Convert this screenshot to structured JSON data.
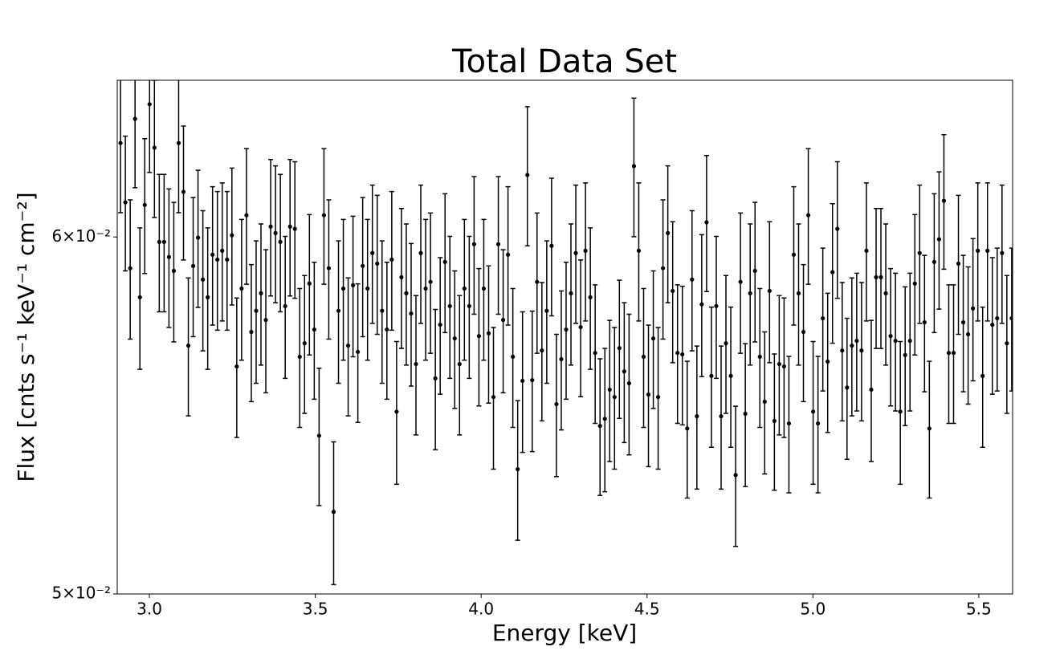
{
  "chart_data": {
    "type": "errorbar",
    "title": "Total Data Set",
    "x_label": "Energy [keV]",
    "y_label": "Flux [cnts s⁻¹ keV⁻¹ cm⁻²]",
    "color": "#000000",
    "ylog": true,
    "xlim": [
      2.903,
      5.602
    ],
    "ylim": [
      0.05,
      0.065
    ],
    "xticks": [
      {
        "value": 3,
        "label": "3.0"
      },
      3.5,
      {
        "value": 4,
        "label": "4.0"
      },
      4.5,
      {
        "value": 5,
        "label": "5.0"
      },
      5.5
    ],
    "yticks": [
      {
        "value": 0.05,
        "label": "5×10⁻²"
      },
      {
        "value": 0.06,
        "label": "6×10⁻²"
      }
    ],
    "x": [
      2.9129,
      2.9275,
      2.9421,
      2.9567,
      2.9713,
      2.9859,
      3.0005,
      3.0151,
      3.0297,
      3.0443,
      3.0589,
      3.0735,
      3.0881,
      3.1027,
      3.1173,
      3.1319,
      3.1465,
      3.1611,
      3.1757,
      3.1903,
      3.2049,
      3.2195,
      3.2341,
      3.2487,
      3.2633,
      3.2779,
      3.2925,
      3.3071,
      3.3217,
      3.3363,
      3.3509,
      3.3655,
      3.3801,
      3.3947,
      3.4093,
      3.4239,
      3.4385,
      3.4531,
      3.4677,
      3.4823,
      3.4969,
      3.5115,
      3.5261,
      3.5407,
      3.5553,
      3.5699,
      3.5845,
      3.5991,
      3.6137,
      3.6283,
      3.6429,
      3.6575,
      3.6721,
      3.6867,
      3.7013,
      3.7159,
      3.7305,
      3.7451,
      3.7597,
      3.7743,
      3.7889,
      3.8035,
      3.8181,
      3.8327,
      3.8473,
      3.8619,
      3.8765,
      3.8911,
      3.9057,
      3.9203,
      3.9349,
      3.9495,
      3.9641,
      3.9787,
      3.9933,
      4.0079,
      4.0225,
      4.0371,
      4.0517,
      4.0663,
      4.0809,
      4.0955,
      4.1101,
      4.1247,
      4.1393,
      4.1539,
      4.1685,
      4.1831,
      4.1977,
      4.2123,
      4.2269,
      4.2415,
      4.2561,
      4.2707,
      4.2853,
      4.2999,
      4.3145,
      4.3291,
      4.3437,
      4.3583,
      4.3729,
      4.3875,
      4.4021,
      4.4167,
      4.4313,
      4.4459,
      4.4605,
      4.4751,
      4.4897,
      4.5043,
      4.5189,
      4.5335,
      4.5481,
      4.5627,
      4.5773,
      4.5919,
      4.6065,
      4.6211,
      4.6357,
      4.6503,
      4.6649,
      4.6795,
      4.6941,
      4.7087,
      4.7233,
      4.7379,
      4.7525,
      4.7671,
      4.7817,
      4.7963,
      4.8109,
      4.8255,
      4.8401,
      4.8547,
      4.8693,
      4.8839,
      4.8985,
      4.9131,
      4.9277,
      4.9423,
      4.9569,
      4.9715,
      4.9861,
      5.0007,
      5.0153,
      5.0299,
      5.0445,
      5.0591,
      5.0737,
      5.0883,
      5.1029,
      5.1175,
      5.1321,
      5.1467,
      5.1613,
      5.1759,
      5.1905,
      5.2051,
      5.2197,
      5.2343,
      5.2489,
      5.2635,
      5.2781,
      5.2927,
      5.3073,
      5.3219,
      5.3365,
      5.3511,
      5.3657,
      5.3803,
      5.3949,
      5.4095,
      5.4241,
      5.4387,
      5.4533,
      5.4679,
      5.4825,
      5.4971,
      5.5117,
      5.5263,
      5.5409,
      5.5555,
      5.5701,
      5.5847,
      5.5993
    ],
    "values": [
      0.06295,
      0.06107,
      0.05905,
      0.06373,
      0.05818,
      0.06099,
      0.06421,
      0.0628,
      0.05985,
      0.05985,
      0.05939,
      0.05897,
      0.06295,
      0.0614,
      0.05676,
      0.05912,
      0.05998,
      0.05871,
      0.05818,
      0.05946,
      0.05931,
      0.05958,
      0.05931,
      0.06005,
      0.05616,
      0.05844,
      0.06067,
      0.05716,
      0.05778,
      0.0583,
      0.05751,
      0.06032,
      0.06012,
      0.05985,
      0.05792,
      0.06032,
      0.06025,
      0.05644,
      0.05683,
      0.05859,
      0.05723,
      0.05421,
      0.06067,
      0.05905,
      0.05214,
      0.05778,
      0.05844,
      0.05676,
      0.05854,
      0.05658,
      0.05912,
      0.05844,
      0.05951,
      0.05919,
      0.05778,
      0.05723,
      0.05931,
      0.05488,
      0.05878,
      0.0583,
      0.0577,
      0.05623,
      0.05951,
      0.05844,
      0.05864,
      0.05582,
      0.05737,
      0.05924,
      0.05792,
      0.05697,
      0.05623,
      0.05844,
      0.05792,
      0.05978,
      0.05704,
      0.05844,
      0.05712,
      0.05529,
      0.05978,
      0.05751,
      0.05946,
      0.05644,
      0.05329,
      0.05575,
      0.06193,
      0.05577,
      0.05864,
      0.05662,
      0.05778,
      0.05973,
      0.05509,
      0.05637,
      0.05723,
      0.0583,
      0.05951,
      0.0573,
      0.05958,
      0.05818,
      0.05655,
      0.05448,
      0.05468,
      0.0555,
      0.05529,
      0.05669,
      0.05602,
      0.05568,
      0.06221,
      0.05958,
      0.05644,
      0.05536,
      0.05697,
      0.05529,
      0.05905,
      0.06012,
      0.05837,
      0.05655,
      0.05651,
      0.05441,
      0.05871,
      0.05475,
      0.05797,
      0.06045,
      0.05589,
      0.05792,
      0.05475,
      0.05683,
      0.05589,
      0.05313,
      0.05864,
      0.05482,
      0.0583,
      0.05897,
      0.05644,
      0.05516,
      0.05837,
      0.05462,
      0.05623,
      0.05616,
      0.05455,
      0.05946,
      0.0583,
      0.05716,
      0.06067,
      0.05488,
      0.05455,
      0.05756,
      0.0563,
      0.05893,
      0.06025,
      0.05662,
      0.05556,
      0.05676,
      0.0569,
      0.05662,
      0.05958,
      0.0555,
      0.05878,
      0.05878,
      0.0583,
      0.05704,
      0.0569,
      0.05488,
      0.05649,
      0.0569,
      0.05859,
      0.05951,
      0.05744,
      0.05441,
      0.05924,
      0.05993,
      0.06112,
      0.05655,
      0.05655,
      0.05919,
      0.05744,
      0.05709,
      0.05785,
      0.05958,
      0.05589,
      0.05958,
      0.05737,
      0.05756,
      0.05951,
      0.05683,
      0.05756
    ],
    "errors": [
      0.0022,
      0.0021,
      0.0021,
      0.0022,
      0.0021,
      0.0021,
      0.0022,
      0.0022,
      0.0021,
      0.0021,
      0.0021,
      0.0021,
      0.0022,
      0.0021,
      0.002,
      0.0021,
      0.0021,
      0.0021,
      0.0021,
      0.0021,
      0.0021,
      0.0021,
      0.0021,
      0.0021,
      0.002,
      0.0021,
      0.0021,
      0.002,
      0.0021,
      0.0021,
      0.0021,
      0.0021,
      0.0021,
      0.0021,
      0.0021,
      0.0021,
      0.0021,
      0.002,
      0.002,
      0.0021,
      0.002,
      0.0019,
      0.0021,
      0.0021,
      0.0019,
      0.0021,
      0.0021,
      0.002,
      0.0021,
      0.002,
      0.0021,
      0.0021,
      0.0021,
      0.0021,
      0.0021,
      0.002,
      0.0021,
      0.002,
      0.0021,
      0.0021,
      0.0021,
      0.002,
      0.0021,
      0.0021,
      0.0021,
      0.002,
      0.002,
      0.0021,
      0.0021,
      0.002,
      0.002,
      0.0021,
      0.0021,
      0.0021,
      0.002,
      0.0021,
      0.002,
      0.002,
      0.0021,
      0.0021,
      0.0021,
      0.002,
      0.0019,
      0.002,
      0.0022,
      0.002,
      0.0021,
      0.002,
      0.0021,
      0.0021,
      0.002,
      0.002,
      0.002,
      0.0021,
      0.0021,
      0.002,
      0.0021,
      0.0021,
      0.002,
      0.0019,
      0.002,
      0.002,
      0.002,
      0.002,
      0.002,
      0.002,
      0.0022,
      0.0021,
      0.002,
      0.002,
      0.002,
      0.002,
      0.0021,
      0.0021,
      0.0021,
      0.002,
      0.002,
      0.0019,
      0.0021,
      0.002,
      0.0021,
      0.0021,
      0.002,
      0.0021,
      0.002,
      0.002,
      0.002,
      0.0019,
      0.0021,
      0.002,
      0.0021,
      0.0021,
      0.002,
      0.002,
      0.0021,
      0.0019,
      0.002,
      0.002,
      0.0019,
      0.0021,
      0.0021,
      0.002,
      0.0021,
      0.002,
      0.0019,
      0.0021,
      0.002,
      0.0021,
      0.0021,
      0.002,
      0.002,
      0.002,
      0.002,
      0.002,
      0.0021,
      0.002,
      0.0021,
      0.0021,
      0.0021,
      0.002,
      0.002,
      0.002,
      0.002,
      0.002,
      0.0021,
      0.0021,
      0.002,
      0.0019,
      0.0021,
      0.0021,
      0.0021,
      0.002,
      0.002,
      0.0021,
      0.002,
      0.002,
      0.0021,
      0.0021,
      0.002,
      0.0021,
      0.002,
      0.0021,
      0.0021,
      0.002,
      0.0021
    ]
  }
}
